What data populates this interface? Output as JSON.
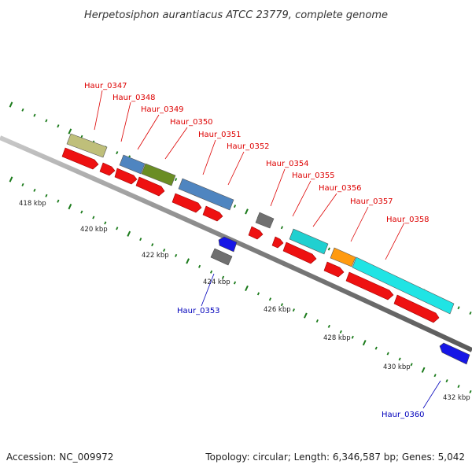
{
  "title": "Herpetosiphon aurantiacus ATCC 23779, complete genome",
  "footer": {
    "accession": "Accession: NC_009972",
    "info": "Topology: circular; Length: 6,346,587 bp; Genes: 5,042"
  },
  "colors": {
    "forward_label": "#dd0000",
    "reverse_label": "#0000bb",
    "gene_arrow": "#ee1111",
    "tick": "#1a7a1a",
    "backbone": "#8c8c8c"
  },
  "scale_labels": [
    "418 kbp",
    "420 kbp",
    "422 kbp",
    "424 kbp",
    "426 kbp",
    "428 kbp",
    "430 kbp",
    "432 kbp"
  ],
  "forward_genes": [
    {
      "label": "Haur_0347",
      "color": "#bfbf7a"
    },
    {
      "label": "Haur_0348",
      "color": "#4f85c0"
    },
    {
      "label": "Haur_0349",
      "color": "#6a8d24"
    },
    {
      "label": "Haur_0350",
      "color": "#6a8d24"
    },
    {
      "label": "Haur_0351",
      "color": "#4f85c0"
    },
    {
      "label": "Haur_0352",
      "color": "#4f85c0"
    },
    {
      "label": "Haur_0354",
      "color": "#707070"
    },
    {
      "label": "Haur_0355",
      "color": "#20d0d0"
    },
    {
      "label": "Haur_0356",
      "color": "#20d0d0"
    },
    {
      "label": "Haur_0357",
      "color": "#ff9a10"
    },
    {
      "label": "Haur_0358",
      "color": "#20e4e4"
    }
  ],
  "reverse_genes": [
    {
      "label": "Haur_0353",
      "color": "#1616e6"
    },
    {
      "label": "Haur_0360",
      "color": "#1616e6"
    }
  ]
}
